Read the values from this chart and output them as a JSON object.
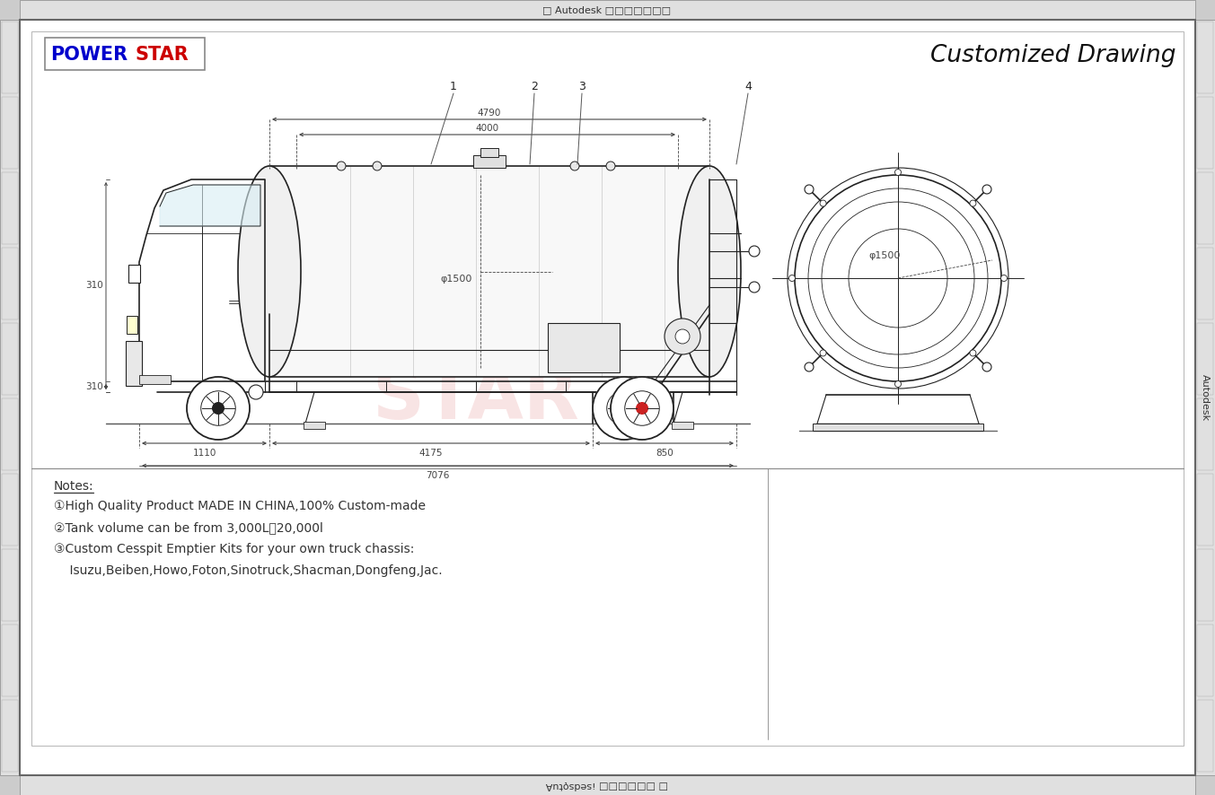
{
  "bg_color": "#ffffff",
  "border_color": "#333333",
  "line_color": "#222222",
  "dim_color": "#444444",
  "title_text": "Customized Drawing",
  "brand_power": "POWER",
  "brand_star": "STAR",
  "brand_color_power": "#0000cc",
  "brand_color_star": "#cc0000",
  "header_text": "□ Autodesk □□□□□□□",
  "footer_text": "□ □□□□□□ ¡sedsǫtuA",
  "notes_title": "Notes:",
  "notes": [
    "①High Quality Product MADE IN CHINA,100% Custom-made",
    "②Tank volume can be from 3,000L－20,000l",
    "③Custom Cesspit Emptier Kits for your own truck chassis:",
    "    Isuzu,Beiben,Howo,Foton,Sinotruck,Shacman,Dongfeng,Jac."
  ],
  "dim_4790": "4790",
  "dim_4000": "4000",
  "dim_phi1500_side": "φ1500",
  "dim_phi1500_rear": "φ1500",
  "dim_310": "310",
  "dim_1110": "1110",
  "dim_4175": "4175",
  "dim_850": "850",
  "dim_7076": "7076",
  "callouts": [
    "1",
    "2",
    "3",
    "4"
  ],
  "side_label": "Autodesk"
}
